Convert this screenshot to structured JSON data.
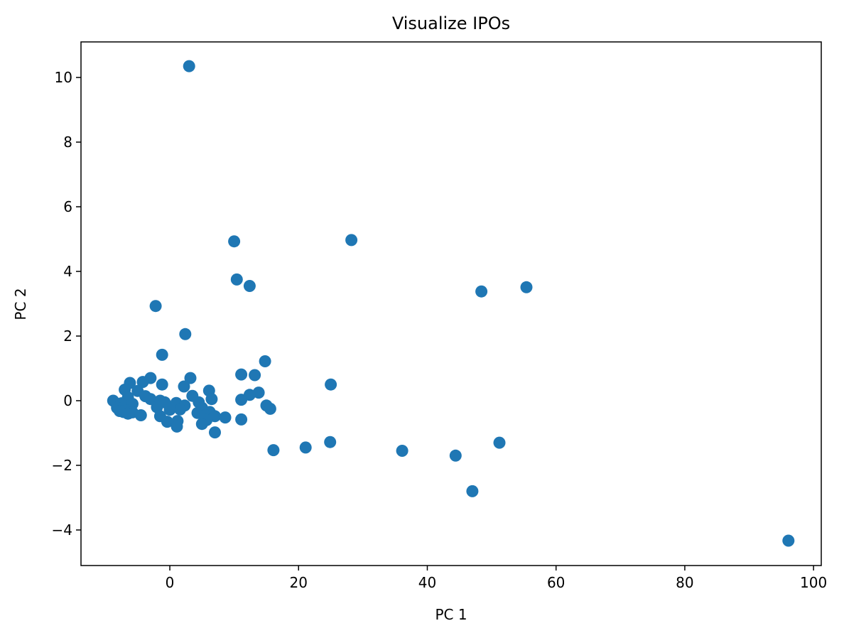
{
  "chart_data": {
    "type": "scatter",
    "title": "Visualize IPOs",
    "xlabel": "PC 1",
    "ylabel": "PC 2",
    "xlim": [
      -13.8,
      101.2
    ],
    "ylim": [
      -5.1,
      11.1
    ],
    "xticks": [
      0,
      20,
      40,
      60,
      80,
      100
    ],
    "yticks": [
      -4,
      -2,
      0,
      2,
      4,
      6,
      8,
      10
    ],
    "xtick_labels": [
      "0",
      "20",
      "40",
      "60",
      "80",
      "100"
    ],
    "ytick_labels": [
      "−4",
      "−2",
      "0",
      "2",
      "4",
      "6",
      "8",
      "10"
    ],
    "grid": false,
    "marker_color": "#1f77b4",
    "points": [
      {
        "x": 3.0,
        "y": 10.35
      },
      {
        "x": 10.0,
        "y": 4.93
      },
      {
        "x": 28.2,
        "y": 4.97
      },
      {
        "x": 10.4,
        "y": 3.75
      },
      {
        "x": 12.4,
        "y": 3.55
      },
      {
        "x": 48.4,
        "y": 3.38
      },
      {
        "x": 55.4,
        "y": 3.51
      },
      {
        "x": -2.2,
        "y": 2.93
      },
      {
        "x": 2.4,
        "y": 2.06
      },
      {
        "x": -1.2,
        "y": 1.42
      },
      {
        "x": 14.8,
        "y": 1.22
      },
      {
        "x": 11.1,
        "y": 0.81
      },
      {
        "x": 13.2,
        "y": 0.79
      },
      {
        "x": 3.2,
        "y": 0.7
      },
      {
        "x": -3.0,
        "y": 0.7
      },
      {
        "x": -4.2,
        "y": 0.58
      },
      {
        "x": -6.2,
        "y": 0.55
      },
      {
        "x": -1.2,
        "y": 0.5
      },
      {
        "x": 25.0,
        "y": 0.5
      },
      {
        "x": 2.2,
        "y": 0.44
      },
      {
        "x": -7.0,
        "y": 0.34
      },
      {
        "x": -5.0,
        "y": 0.3
      },
      {
        "x": 6.1,
        "y": 0.31
      },
      {
        "x": 13.8,
        "y": 0.25
      },
      {
        "x": 12.4,
        "y": 0.18
      },
      {
        "x": 3.5,
        "y": 0.15
      },
      {
        "x": -3.8,
        "y": 0.14
      },
      {
        "x": -6.5,
        "y": 0.1
      },
      {
        "x": 6.5,
        "y": 0.05
      },
      {
        "x": 11.1,
        "y": 0.03
      },
      {
        "x": -8.8,
        "y": 0.0
      },
      {
        "x": -3.0,
        "y": 0.05
      },
      {
        "x": -1.5,
        "y": 0.0
      },
      {
        "x": -0.8,
        "y": -0.05
      },
      {
        "x": 1.0,
        "y": -0.07
      },
      {
        "x": 4.5,
        "y": -0.05
      },
      {
        "x": -7.5,
        "y": -0.08
      },
      {
        "x": -5.8,
        "y": -0.1
      },
      {
        "x": 2.3,
        "y": -0.15
      },
      {
        "x": 15.0,
        "y": -0.15
      },
      {
        "x": -2.0,
        "y": -0.2
      },
      {
        "x": 5.0,
        "y": -0.22
      },
      {
        "x": 15.6,
        "y": -0.25
      },
      {
        "x": -8.2,
        "y": -0.22
      },
      {
        "x": 1.6,
        "y": -0.27
      },
      {
        "x": 0.0,
        "y": -0.28
      },
      {
        "x": -6.8,
        "y": -0.3
      },
      {
        "x": -7.8,
        "y": -0.32
      },
      {
        "x": -5.8,
        "y": -0.36
      },
      {
        "x": -7.2,
        "y": -0.35
      },
      {
        "x": 6.2,
        "y": -0.35
      },
      {
        "x": 4.3,
        "y": -0.38
      },
      {
        "x": -6.5,
        "y": -0.4
      },
      {
        "x": -4.5,
        "y": -0.45
      },
      {
        "x": 5.5,
        "y": -0.45
      },
      {
        "x": 7.0,
        "y": -0.48
      },
      {
        "x": -1.5,
        "y": -0.48
      },
      {
        "x": 8.6,
        "y": -0.52
      },
      {
        "x": 11.1,
        "y": -0.58
      },
      {
        "x": 5.7,
        "y": -0.6
      },
      {
        "x": 1.2,
        "y": -0.63
      },
      {
        "x": -0.4,
        "y": -0.65
      },
      {
        "x": 5.0,
        "y": -0.72
      },
      {
        "x": 1.1,
        "y": -0.8
      },
      {
        "x": 7.0,
        "y": -0.98
      },
      {
        "x": 24.9,
        "y": -1.28
      },
      {
        "x": 51.2,
        "y": -1.3
      },
      {
        "x": 21.1,
        "y": -1.45
      },
      {
        "x": 16.1,
        "y": -1.53
      },
      {
        "x": 36.1,
        "y": -1.55
      },
      {
        "x": 44.4,
        "y": -1.7
      },
      {
        "x": 47.0,
        "y": -2.8
      },
      {
        "x": 96.1,
        "y": -4.33
      }
    ]
  }
}
